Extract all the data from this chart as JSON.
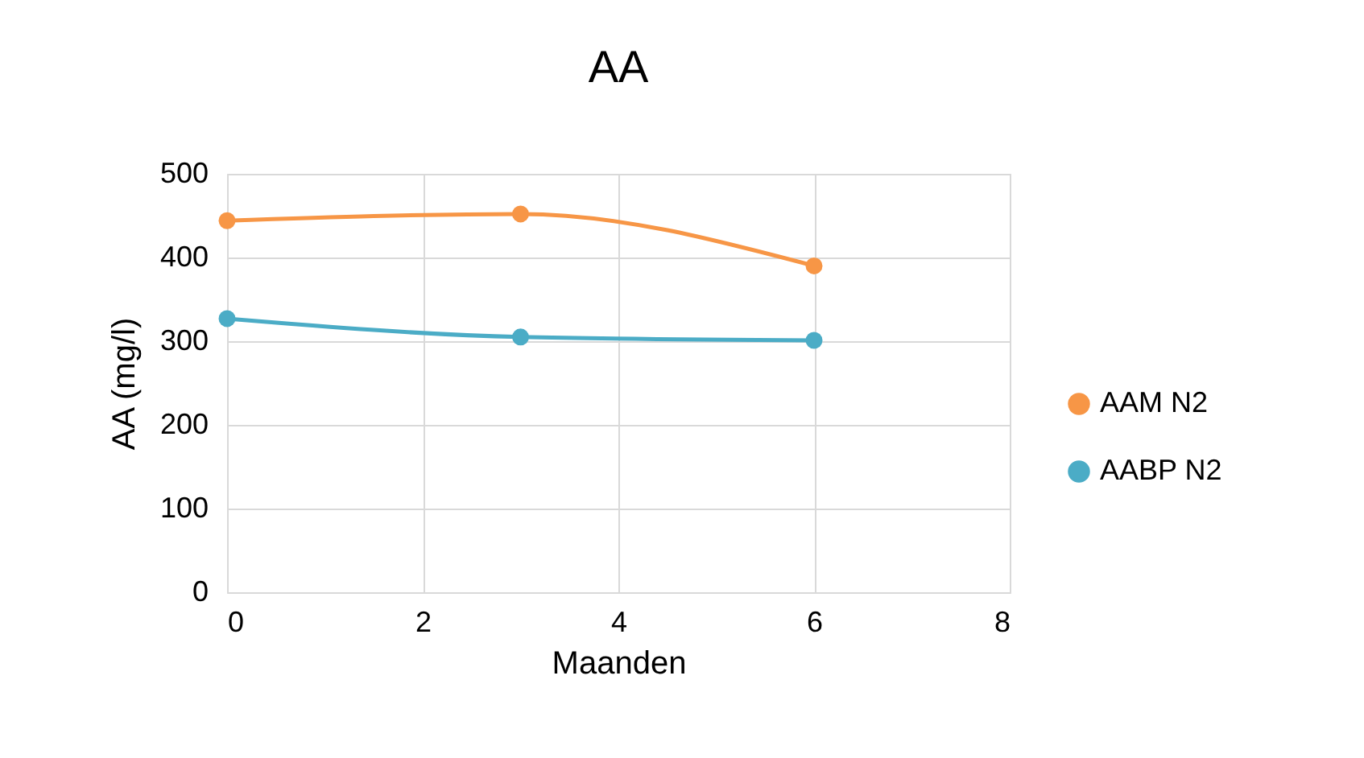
{
  "chart_data": {
    "type": "line",
    "title": "AA",
    "xlabel": "Maanden",
    "ylabel": "AA (mg/l)",
    "x": [
      0,
      3,
      6
    ],
    "series": [
      {
        "name": "AAM N2",
        "color": "#f79646",
        "values": [
          444,
          452,
          390
        ]
      },
      {
        "name": "AABP N2",
        "color": "#4bacc6",
        "values": [
          327,
          305,
          301
        ]
      }
    ],
    "xlim": [
      0,
      8
    ],
    "xticks": [
      0,
      2,
      4,
      6,
      8
    ],
    "ylim": [
      0,
      500
    ],
    "yticks": [
      0,
      100,
      200,
      300,
      400,
      500
    ],
    "grid": true,
    "legend": "right",
    "marker": "circle"
  }
}
